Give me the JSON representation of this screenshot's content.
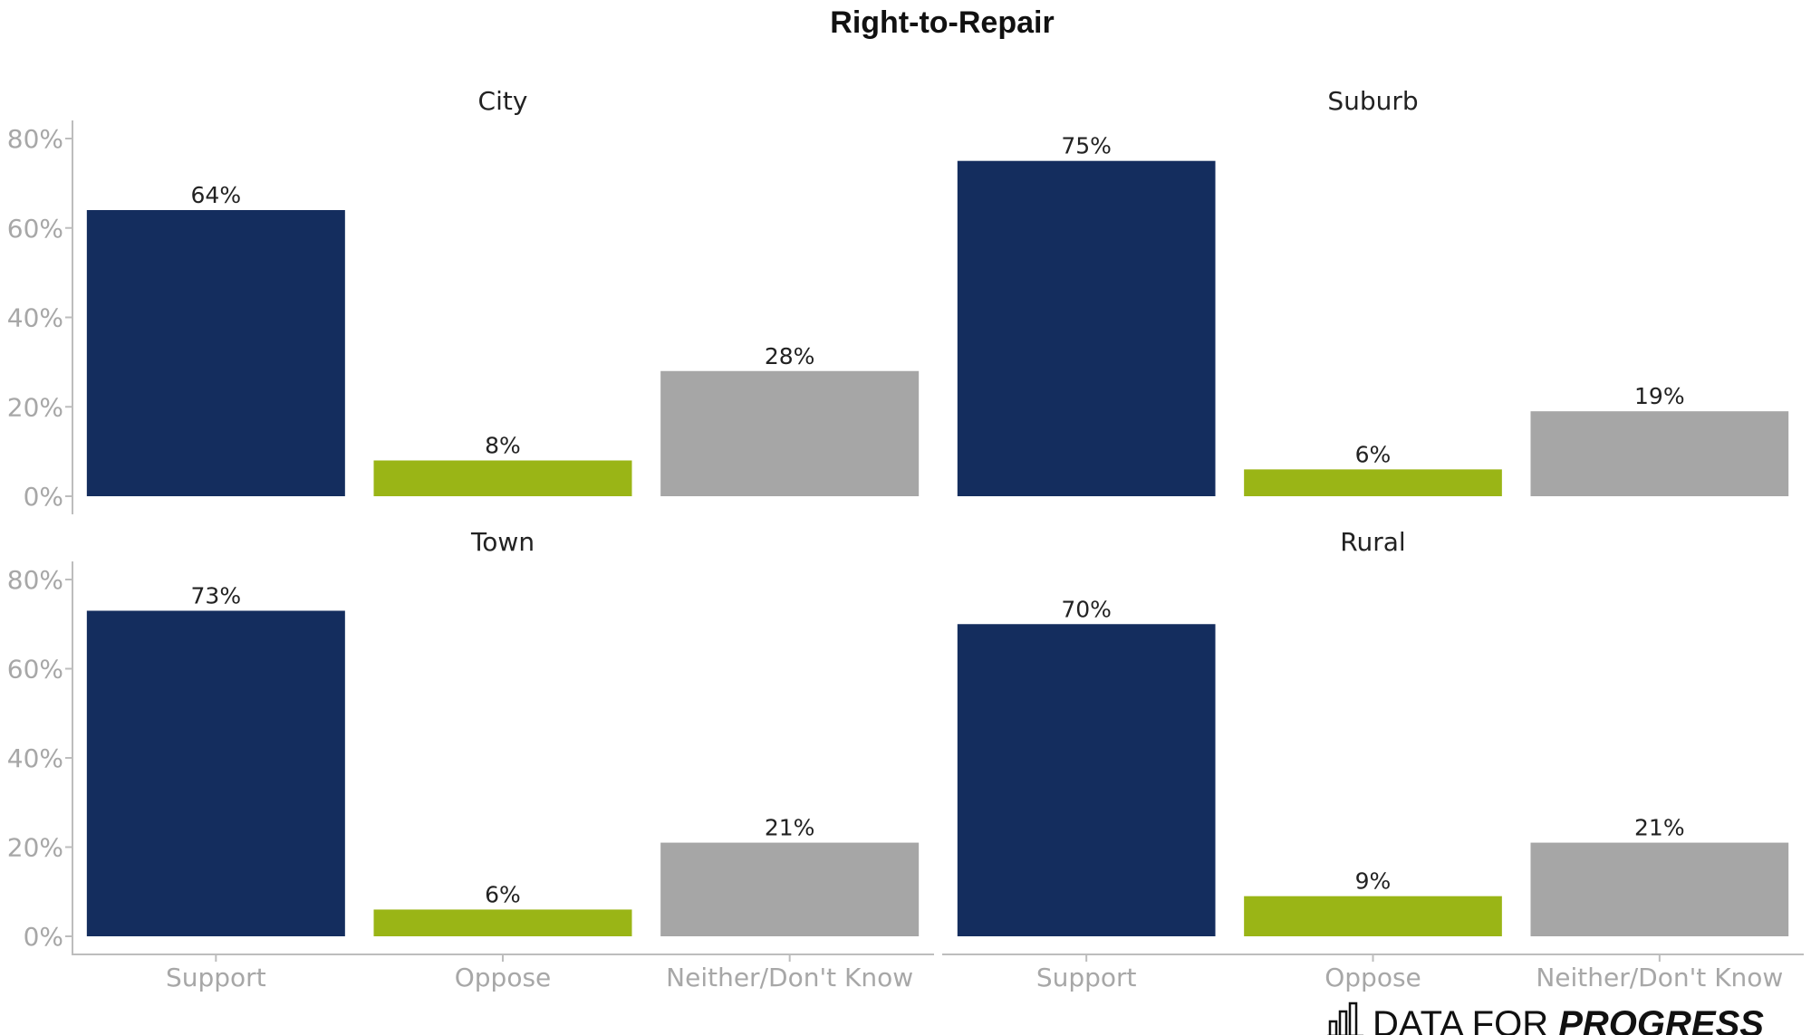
{
  "chart_data": {
    "type": "bar",
    "title": "Right-to-Repair",
    "categories": [
      "Support",
      "Oppose",
      "Neither/Don't Know"
    ],
    "colors": [
      "#142d5e",
      "#9ab516",
      "#a6a6a6"
    ],
    "ylim": [
      0,
      80
    ],
    "yticks": [
      0,
      20,
      40,
      60,
      80
    ],
    "ytick_labels": [
      "0%",
      "20%",
      "40%",
      "60%",
      "80%"
    ],
    "grid": false,
    "legend": "none",
    "facets": [
      {
        "name": "City",
        "values": [
          64,
          8,
          28
        ],
        "labels": [
          "64%",
          "8%",
          "28%"
        ]
      },
      {
        "name": "Suburb",
        "values": [
          75,
          6,
          19
        ],
        "labels": [
          "75%",
          "6%",
          "19%"
        ]
      },
      {
        "name": "Town",
        "values": [
          73,
          6,
          21
        ],
        "labels": [
          "73%",
          "6%",
          "21%"
        ]
      },
      {
        "name": "Rural",
        "values": [
          70,
          9,
          21
        ],
        "labels": [
          "70%",
          "9%",
          "21%"
        ]
      }
    ]
  },
  "branding": {
    "text_plain": "DATA FOR ",
    "text_strong": "PROGRESS",
    "icon": "bar-chart-icon"
  }
}
